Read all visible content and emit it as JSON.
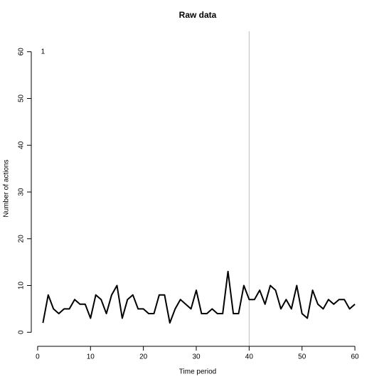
{
  "chart_data": {
    "type": "line",
    "title": "Raw data",
    "x_label": "Time period",
    "y_label": "Number of actions",
    "x": [
      1,
      2,
      3,
      4,
      5,
      6,
      7,
      8,
      9,
      10,
      11,
      12,
      13,
      14,
      15,
      16,
      17,
      18,
      19,
      20,
      21,
      22,
      23,
      24,
      25,
      26,
      27,
      28,
      29,
      30,
      31,
      32,
      33,
      34,
      35,
      36,
      37,
      38,
      39,
      40,
      41,
      42,
      43,
      44,
      45,
      46,
      47,
      48,
      49,
      50,
      51,
      52,
      53,
      54,
      55,
      56,
      57,
      58,
      59,
      60
    ],
    "series": [
      {
        "color": "#000000",
        "values": [
          2,
          8,
          5,
          4,
          5,
          5,
          7,
          6,
          6,
          3,
          8,
          7,
          4,
          8,
          10,
          3,
          7,
          8,
          5,
          5,
          4,
          4,
          8,
          8,
          2,
          5,
          7,
          6,
          5,
          9,
          4,
          4,
          5,
          4,
          4,
          13,
          4,
          4,
          10,
          7,
          7,
          9,
          6,
          10,
          9,
          5,
          7,
          5,
          10,
          4,
          3,
          9,
          6,
          5,
          7,
          6,
          7,
          7,
          5,
          6
        ]
      }
    ],
    "xlim": [
      -1.2,
      61.2
    ],
    "ylim": [
      -3,
      63
    ],
    "xticks": [
      0,
      10,
      20,
      30,
      40,
      50,
      60
    ],
    "yticks": [
      0,
      10,
      20,
      30,
      40,
      50,
      60
    ],
    "vline": {
      "x": 40,
      "color": "#bebebe"
    },
    "annotation": {
      "text": "1",
      "x": 1,
      "y": 60
    }
  }
}
